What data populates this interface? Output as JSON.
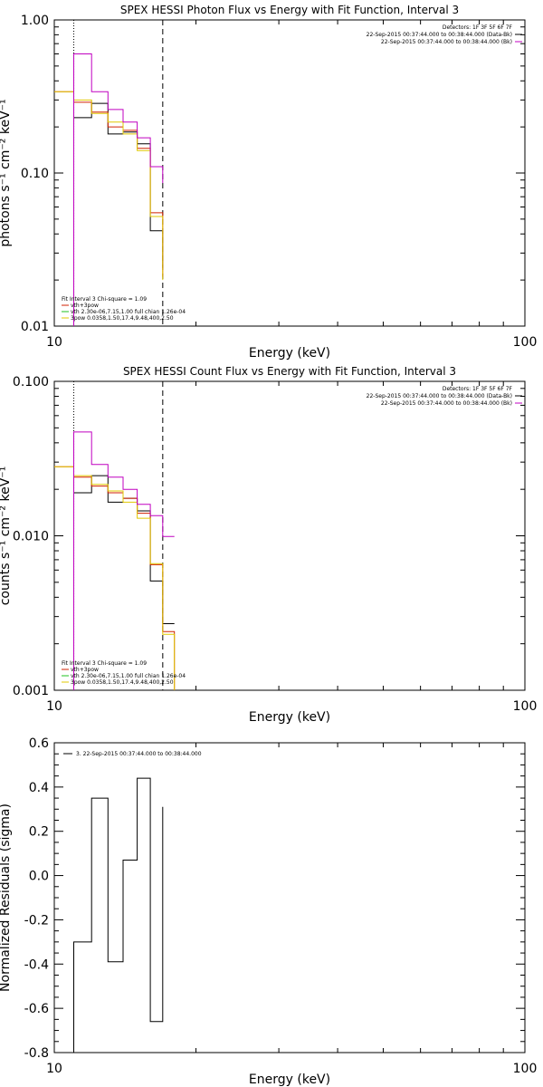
{
  "chart_data": [
    {
      "type": "line",
      "title": "SPEX HESSI Photon Flux vs Energy with Fit Function, Interval 3",
      "xlabel": "Energy (keV)",
      "ylabel": "photons s⁻¹ cm⁻² keV⁻¹",
      "xscale": "log",
      "yscale": "log",
      "xlim": [
        10,
        100
      ],
      "ylim": [
        0.01,
        1.0
      ],
      "xticks": [
        "10",
        "100"
      ],
      "yticks": [
        "0.01",
        "0.10",
        "1.00"
      ],
      "legend_top_right": [
        "Detectors: 1F 3F 5F 6F 7F",
        "22-Sep-2015 00:37:44.000 to 00:38:44.000 (Data-Bk)",
        "22-Sep-2015 00:37:44.000 to 00:38:44.000 (Bk)"
      ],
      "legend_bottom_left": [
        "Fit Interval 3   Chi-square = 1.09",
        "vth+3pow",
        "vth 2.30e-06,7.15,1.00  full chian 1.26e-04",
        "3pow 0.0358,1.50,17.4,9.48,400,2.50"
      ],
      "edges": [
        10,
        11.0,
        12.0,
        13.0,
        14.0,
        15.0,
        16.0,
        17.0
      ],
      "series": [
        {
          "name": "Data-Bk",
          "color": "#000000",
          "values": [
            null,
            0.23,
            0.285,
            0.18,
            0.185,
            0.155,
            0.042,
            0.024
          ]
        },
        {
          "name": "vth+3pow",
          "color": "#d02000",
          "values": [
            0.34,
            0.29,
            0.25,
            0.2,
            0.19,
            0.145,
            0.055,
            0.021
          ]
        },
        {
          "name": "vth",
          "color": "#e0c800",
          "values": [
            0.34,
            0.3,
            0.245,
            0.215,
            0.18,
            0.14,
            0.052,
            0.02
          ]
        },
        {
          "name": "Bk",
          "color": "#c000c0",
          "values": [
            null,
            0.6,
            0.34,
            0.26,
            0.215,
            0.17,
            0.11,
            0.086
          ]
        }
      ],
      "vlines": [
        {
          "x": 11.0,
          "style": "dotted"
        },
        {
          "x": 17.0,
          "style": "dashed"
        }
      ]
    },
    {
      "type": "line",
      "title": "SPEX HESSI Count Flux vs Energy with Fit Function, Interval 3",
      "xlabel": "Energy (keV)",
      "ylabel": "counts s⁻¹ cm⁻² keV⁻¹",
      "xscale": "log",
      "yscale": "log",
      "xlim": [
        10,
        100
      ],
      "ylim": [
        0.001,
        0.1
      ],
      "xticks": [
        "10",
        "100"
      ],
      "yticks": [
        "0.001",
        "0.010",
        "0.100"
      ],
      "legend_top_right": [
        "Detectors: 1F 3F 5F 6F 7F",
        "22-Sep-2015 00:37:44.000 to 00:38:44.000 (Data-Bk)",
        "22-Sep-2015 00:37:44.000 to 00:38:44.000 (Bk)"
      ],
      "legend_bottom_left": [
        "Fit Interval 3   Chi-square = 1.09",
        "vth+3pow",
        "vth 2.30e-06,7.15,1.00  full chian 1.26e-04",
        "3pow 0.0358,1.50,17.4,9.48,400,2.50"
      ],
      "edges": [
        10,
        11.0,
        12.0,
        13.0,
        14.0,
        15.0,
        16.0,
        17.0,
        18.0
      ],
      "series": [
        {
          "name": "Data-Bk",
          "color": "#000000",
          "values": [
            null,
            0.019,
            0.0245,
            0.0165,
            0.0175,
            0.0145,
            0.0051,
            0.0027,
            null
          ]
        },
        {
          "name": "vth+3pow",
          "color": "#d02000",
          "values": [
            0.028,
            0.024,
            0.021,
            0.019,
            0.0175,
            0.014,
            0.0065,
            0.0024,
            0.001
          ]
        },
        {
          "name": "vth",
          "color": "#e0c800",
          "values": [
            0.028,
            0.0245,
            0.0215,
            0.0195,
            0.0165,
            0.013,
            0.0066,
            0.0023,
            0.001
          ]
        },
        {
          "name": "Bk",
          "color": "#c000c0",
          "values": [
            null,
            0.047,
            0.029,
            0.024,
            0.02,
            0.016,
            0.0135,
            0.0099,
            null
          ]
        }
      ],
      "vlines": [
        {
          "x": 11.0,
          "style": "dotted"
        },
        {
          "x": 17.0,
          "style": "dashed"
        }
      ]
    },
    {
      "type": "line",
      "title": "",
      "xlabel": "Energy (keV)",
      "ylabel": "Normalized Residuals (sigma)",
      "xscale": "log",
      "yscale": "linear",
      "xlim": [
        10,
        100
      ],
      "ylim": [
        -0.8,
        0.6
      ],
      "xticks": [
        "10",
        "100"
      ],
      "yticks": [
        "-0.8",
        "-0.6",
        "-0.4",
        "-0.2",
        "0.0",
        "0.2",
        "0.4",
        "0.6"
      ],
      "legend_top_left": [
        "3. 22-Sep-2015 00:37:44.000 to 00:38:44.000"
      ],
      "edges": [
        11.0,
        12.0,
        13.0,
        14.0,
        15.0,
        16.0,
        17.0
      ],
      "series": [
        {
          "name": "3. 22-Sep-2015 00:37:44.000 to 00:38:44.000",
          "color": "#000000",
          "values": [
            -0.3,
            0.35,
            -0.39,
            0.07,
            0.44,
            -0.66,
            0.31
          ]
        }
      ]
    }
  ]
}
